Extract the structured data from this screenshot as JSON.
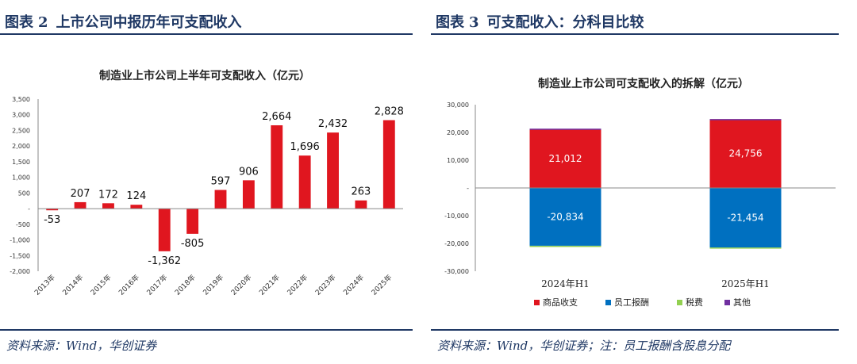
{
  "left": {
    "fig_label": "图表",
    "fig_num": "2",
    "fig_title": "上市公司中报历年可支配收入",
    "source": "资料来源：Wind，华创证券"
  },
  "right": {
    "fig_label": "图表",
    "fig_num": "3",
    "fig_title": "可支配收入：分科目比较",
    "source": "资料来源：Wind，华创证券；注：员工报酬含股息分配"
  },
  "colors": {
    "title_blue": "#1f3864",
    "bar_red": "#e0161f",
    "bar_blue": "#0070c0",
    "tax_green": "#92d050",
    "other_purple": "#7030a0"
  },
  "chart_data": [
    {
      "type": "bar",
      "title": "制造业上市公司上半年可支配收入（亿元）",
      "categories": [
        "2013年",
        "2014年",
        "2015年",
        "2016年",
        "2017年",
        "2018年",
        "2019年",
        "2020年",
        "2021年",
        "2022年",
        "2023年",
        "2024年",
        "2025年"
      ],
      "values": [
        -53,
        207,
        172,
        124,
        -1362,
        -805,
        597,
        906,
        2664,
        1696,
        2432,
        263,
        2828
      ],
      "data_labels": [
        "-53",
        "207",
        "172",
        "124",
        "-1,362",
        "-805",
        "597",
        "906",
        "2,664",
        "1,696",
        "2,432",
        "263",
        "2,828"
      ],
      "ylim": [
        -2000,
        3500
      ],
      "yticks": [
        -2000,
        -1500,
        -1000,
        -500,
        0,
        500,
        1000,
        1500,
        2000,
        2500,
        3000,
        3500
      ],
      "ytick_labels": [
        "-2,000",
        "-1,500",
        "-1,000",
        "-500",
        "-",
        "500",
        "1,000",
        "1,500",
        "2,000",
        "2,500",
        "3,000",
        "3,500"
      ],
      "grid": false
    },
    {
      "type": "bar",
      "stacked": true,
      "title": "制造业上市公司可支配收入的拆解（亿元）",
      "categories": [
        "2024年H1",
        "2025年H1"
      ],
      "series": [
        {
          "name": "商品收支",
          "values": [
            21012,
            24756
          ],
          "labels": [
            "21,012",
            "24,756"
          ]
        },
        {
          "name": "员工报酬",
          "values": [
            -20834,
            -21454
          ],
          "labels": [
            "-20,834",
            "-21,454"
          ]
        },
        {
          "name": "税费",
          "values": [
            -150,
            -150
          ]
        },
        {
          "name": "其他",
          "values": [
            350,
            60
          ]
        }
      ],
      "ylim": [
        -30000,
        30000
      ],
      "yticks": [
        -30000,
        -20000,
        -10000,
        0,
        10000,
        20000,
        30000
      ],
      "ytick_labels": [
        "-30,000",
        "-20,000",
        "-10,000",
        "-",
        "10,000",
        "20,000",
        "30,000"
      ],
      "legend": "bottom",
      "grid": false
    }
  ]
}
